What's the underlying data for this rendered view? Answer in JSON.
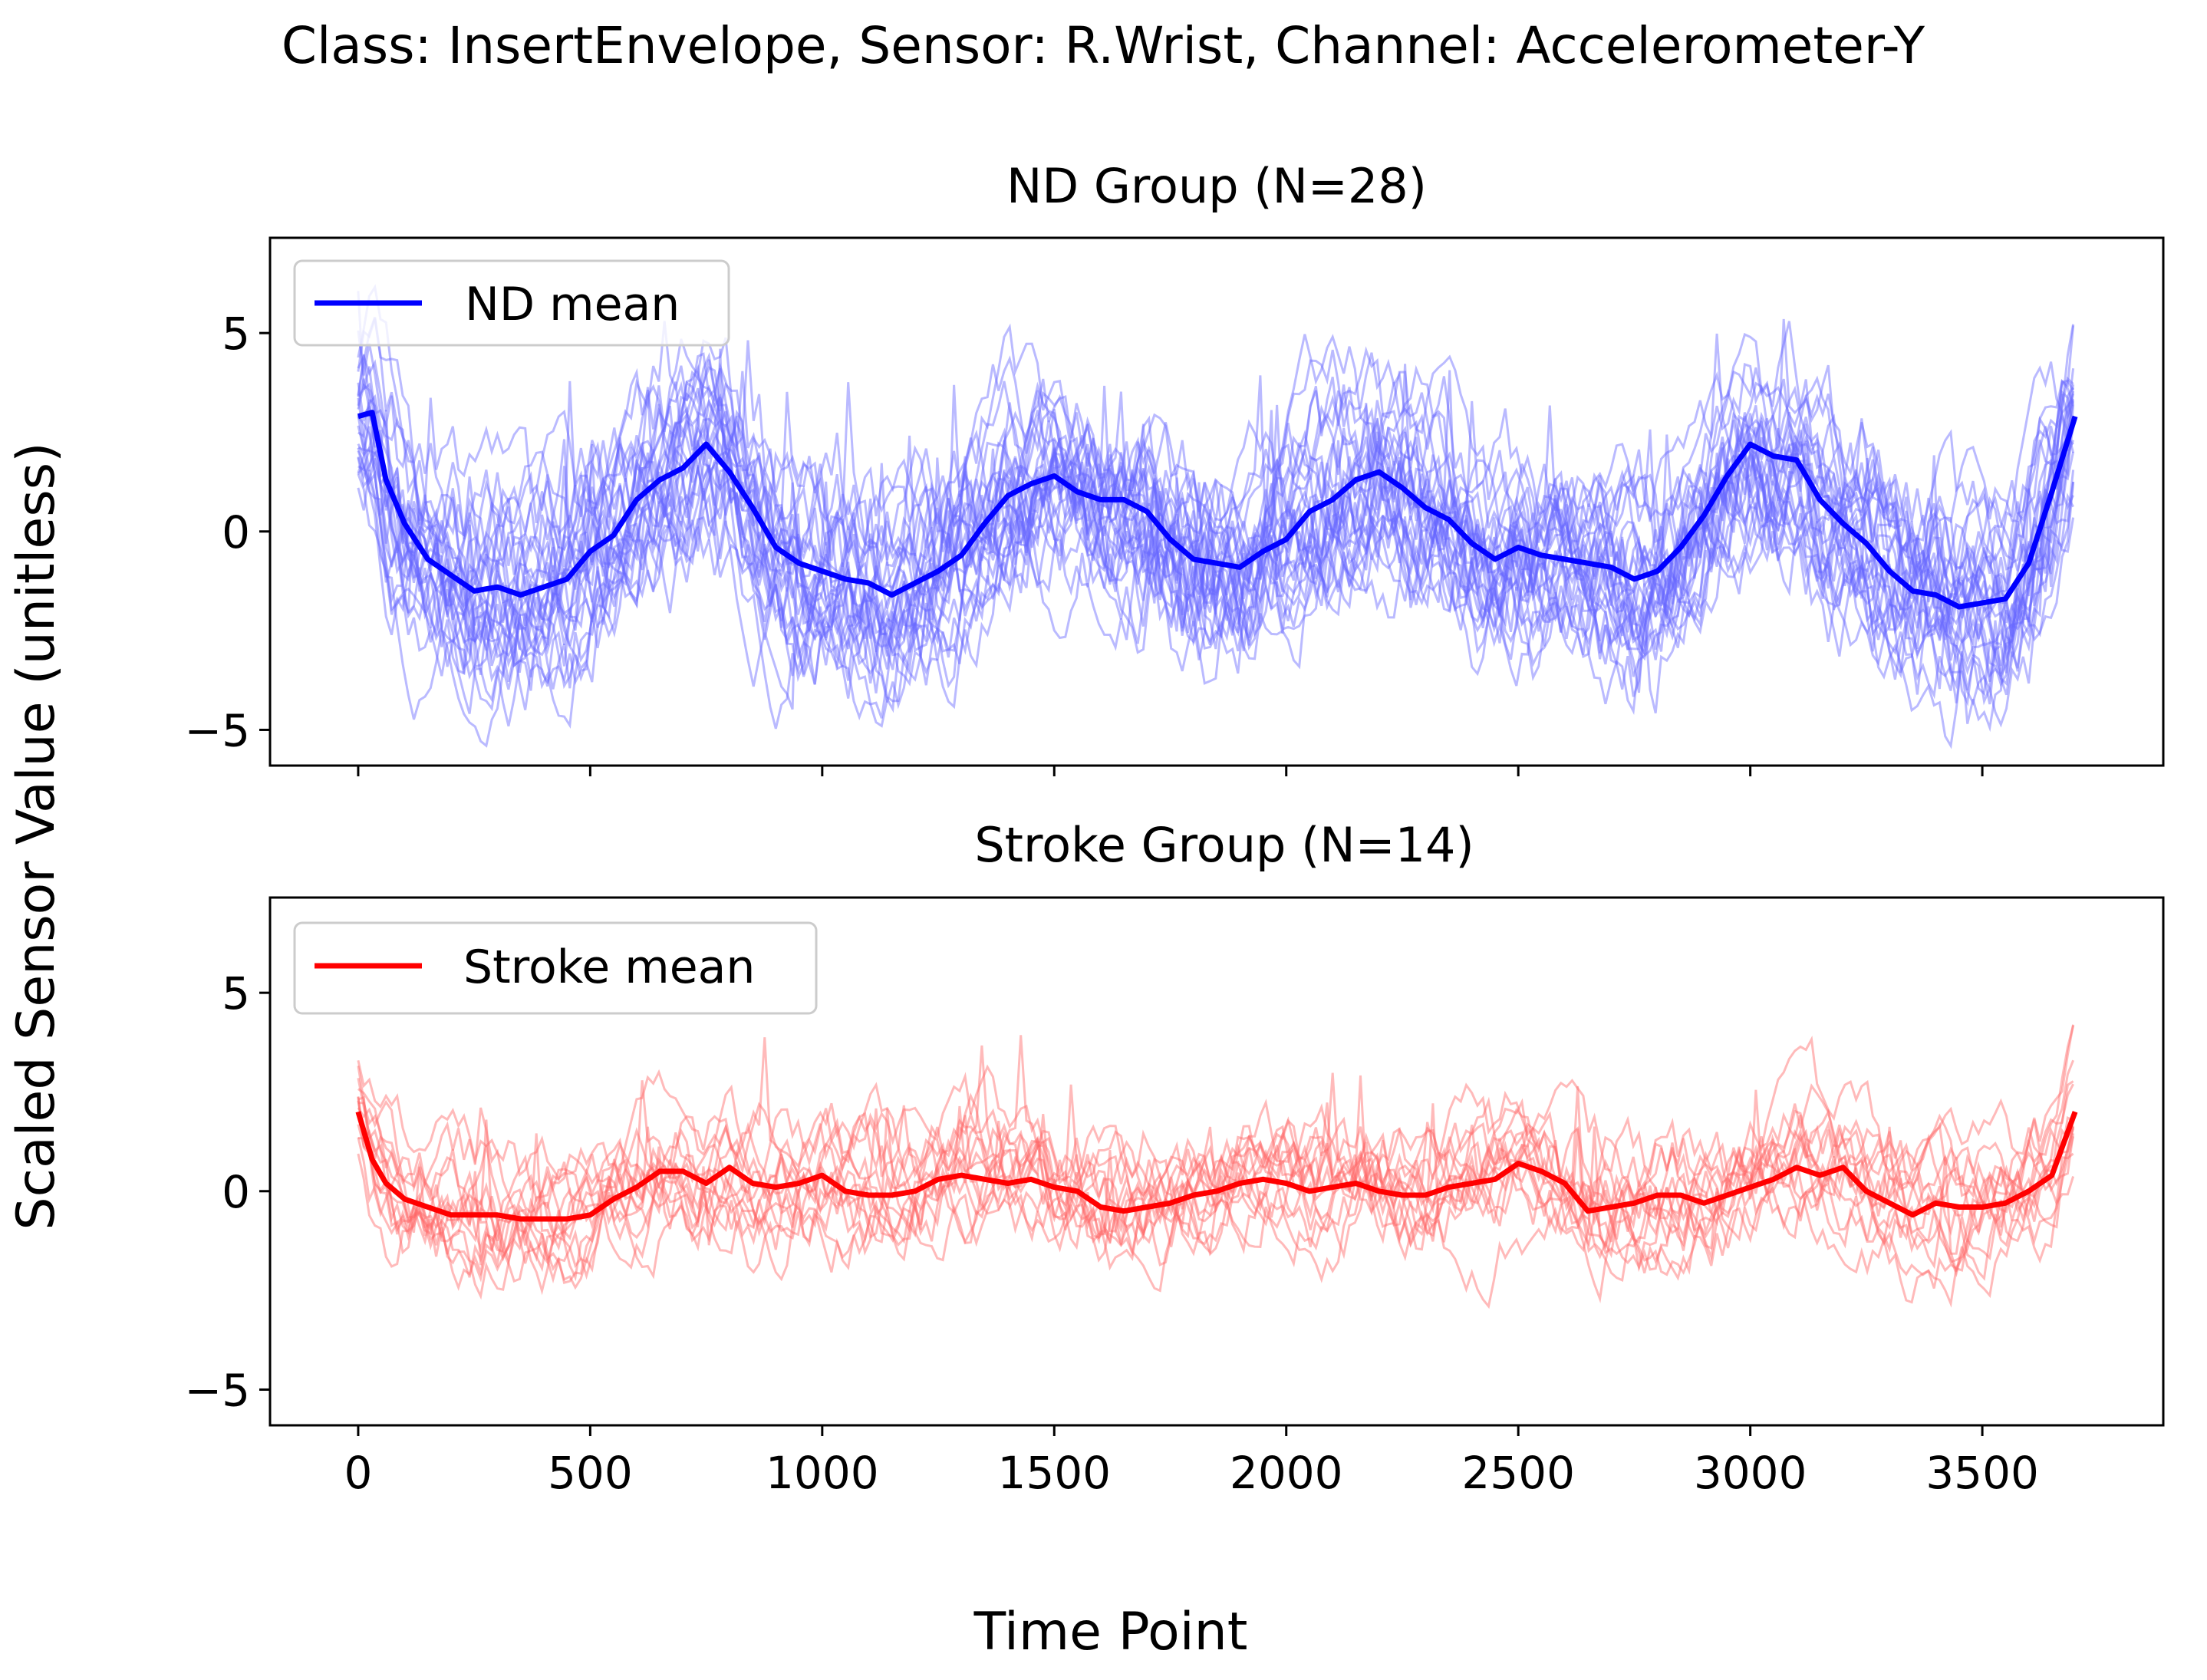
{
  "figure": {
    "suptitle": "Class: InsertEnvelope, Sensor: R.Wrist, Channel: Accelerometer-Y",
    "shared_xlabel": "Time Point",
    "shared_ylabel": "Scaled Sensor Value (unitless)"
  },
  "chart_data": [
    {
      "type": "line",
      "title": "ND Group (N=28)",
      "xlabel": "Time Point",
      "ylabel": "Scaled Sensor Value (unitless)",
      "xlim": [
        -190,
        3890
      ],
      "ylim": [
        -5.9,
        7.4
      ],
      "xticks": [
        0,
        500,
        1000,
        1500,
        2000,
        2500,
        3000,
        3500
      ],
      "yticks": [
        -5,
        0,
        5
      ],
      "ytick_labels": [
        "−5",
        "0",
        "5"
      ],
      "show_xtick_labels": false,
      "legend": {
        "label": "ND mean",
        "position": "top-left"
      },
      "mean_color": "#0000ff",
      "individual_color": "#6666ff",
      "individual_count": 28,
      "individual_amplitude": 2.4,
      "mean_series": {
        "name": "ND mean",
        "x": [
          0,
          30,
          60,
          100,
          150,
          200,
          250,
          300,
          350,
          400,
          450,
          500,
          550,
          600,
          650,
          700,
          750,
          800,
          850,
          900,
          950,
          1000,
          1050,
          1100,
          1150,
          1200,
          1250,
          1300,
          1350,
          1400,
          1450,
          1500,
          1550,
          1600,
          1650,
          1700,
          1750,
          1800,
          1850,
          1900,
          1950,
          2000,
          2050,
          2100,
          2150,
          2200,
          2250,
          2300,
          2350,
          2400,
          2450,
          2500,
          2550,
          2600,
          2650,
          2700,
          2750,
          2800,
          2850,
          2900,
          2950,
          3000,
          3050,
          3100,
          3150,
          3200,
          3250,
          3300,
          3350,
          3400,
          3450,
          3500,
          3550,
          3600,
          3650,
          3700
        ],
        "values": [
          2.9,
          3.0,
          1.3,
          0.2,
          -0.7,
          -1.1,
          -1.5,
          -1.4,
          -1.6,
          -1.4,
          -1.2,
          -0.5,
          -0.1,
          0.8,
          1.3,
          1.6,
          2.2,
          1.5,
          0.6,
          -0.4,
          -0.8,
          -1.0,
          -1.2,
          -1.3,
          -1.6,
          -1.3,
          -1.0,
          -0.6,
          0.2,
          0.9,
          1.2,
          1.4,
          1.0,
          0.8,
          0.8,
          0.5,
          -0.2,
          -0.7,
          -0.8,
          -0.9,
          -0.5,
          -0.2,
          0.5,
          0.8,
          1.3,
          1.5,
          1.1,
          0.6,
          0.3,
          -0.3,
          -0.7,
          -0.4,
          -0.6,
          -0.7,
          -0.8,
          -0.9,
          -1.2,
          -1.0,
          -0.4,
          0.4,
          1.4,
          2.2,
          1.9,
          1.8,
          0.8,
          0.2,
          -0.3,
          -1.0,
          -1.5,
          -1.6,
          -1.9,
          -1.8,
          -1.7,
          -0.8,
          1.0,
          2.9
        ]
      }
    },
    {
      "type": "line",
      "title": "Stroke Group (N=14)",
      "xlabel": "Time Point",
      "ylabel": "Scaled Sensor Value (unitless)",
      "xlim": [
        -190,
        3890
      ],
      "ylim": [
        -5.9,
        7.4
      ],
      "xticks": [
        0,
        500,
        1000,
        1500,
        2000,
        2500,
        3000,
        3500
      ],
      "xtick_labels": [
        "0",
        "500",
        "1000",
        "1500",
        "2000",
        "2500",
        "3000",
        "3500"
      ],
      "yticks": [
        -5,
        0,
        5
      ],
      "ytick_labels": [
        "−5",
        "0",
        "5"
      ],
      "show_xtick_labels": true,
      "legend": {
        "label": "Stroke mean",
        "position": "top-left"
      },
      "mean_color": "#ff0000",
      "individual_color": "#ff6666",
      "individual_count": 14,
      "individual_amplitude": 1.6,
      "mean_series": {
        "name": "Stroke mean",
        "x": [
          0,
          30,
          60,
          100,
          150,
          200,
          250,
          300,
          350,
          400,
          450,
          500,
          550,
          600,
          650,
          700,
          750,
          800,
          850,
          900,
          950,
          1000,
          1050,
          1100,
          1150,
          1200,
          1250,
          1300,
          1350,
          1400,
          1450,
          1500,
          1550,
          1600,
          1650,
          1700,
          1750,
          1800,
          1850,
          1900,
          1950,
          2000,
          2050,
          2100,
          2150,
          2200,
          2250,
          2300,
          2350,
          2400,
          2450,
          2500,
          2550,
          2600,
          2650,
          2700,
          2750,
          2800,
          2850,
          2900,
          2950,
          3000,
          3050,
          3100,
          3150,
          3200,
          3250,
          3300,
          3350,
          3400,
          3450,
          3500,
          3550,
          3600,
          3650,
          3700
        ],
        "values": [
          2.0,
          0.8,
          0.2,
          -0.2,
          -0.4,
          -0.6,
          -0.6,
          -0.6,
          -0.7,
          -0.7,
          -0.7,
          -0.6,
          -0.2,
          0.1,
          0.5,
          0.5,
          0.2,
          0.6,
          0.2,
          0.1,
          0.2,
          0.4,
          0.0,
          -0.1,
          -0.1,
          0.0,
          0.3,
          0.4,
          0.3,
          0.2,
          0.3,
          0.1,
          0.0,
          -0.4,
          -0.5,
          -0.4,
          -0.3,
          -0.1,
          0.0,
          0.2,
          0.3,
          0.2,
          0.0,
          0.1,
          0.2,
          0.0,
          -0.1,
          -0.1,
          0.1,
          0.2,
          0.3,
          0.7,
          0.5,
          0.2,
          -0.5,
          -0.4,
          -0.3,
          -0.1,
          -0.1,
          -0.3,
          -0.1,
          0.1,
          0.3,
          0.6,
          0.4,
          0.6,
          0.0,
          -0.3,
          -0.6,
          -0.3,
          -0.4,
          -0.4,
          -0.3,
          0.0,
          0.4,
          2.0
        ]
      }
    }
  ]
}
